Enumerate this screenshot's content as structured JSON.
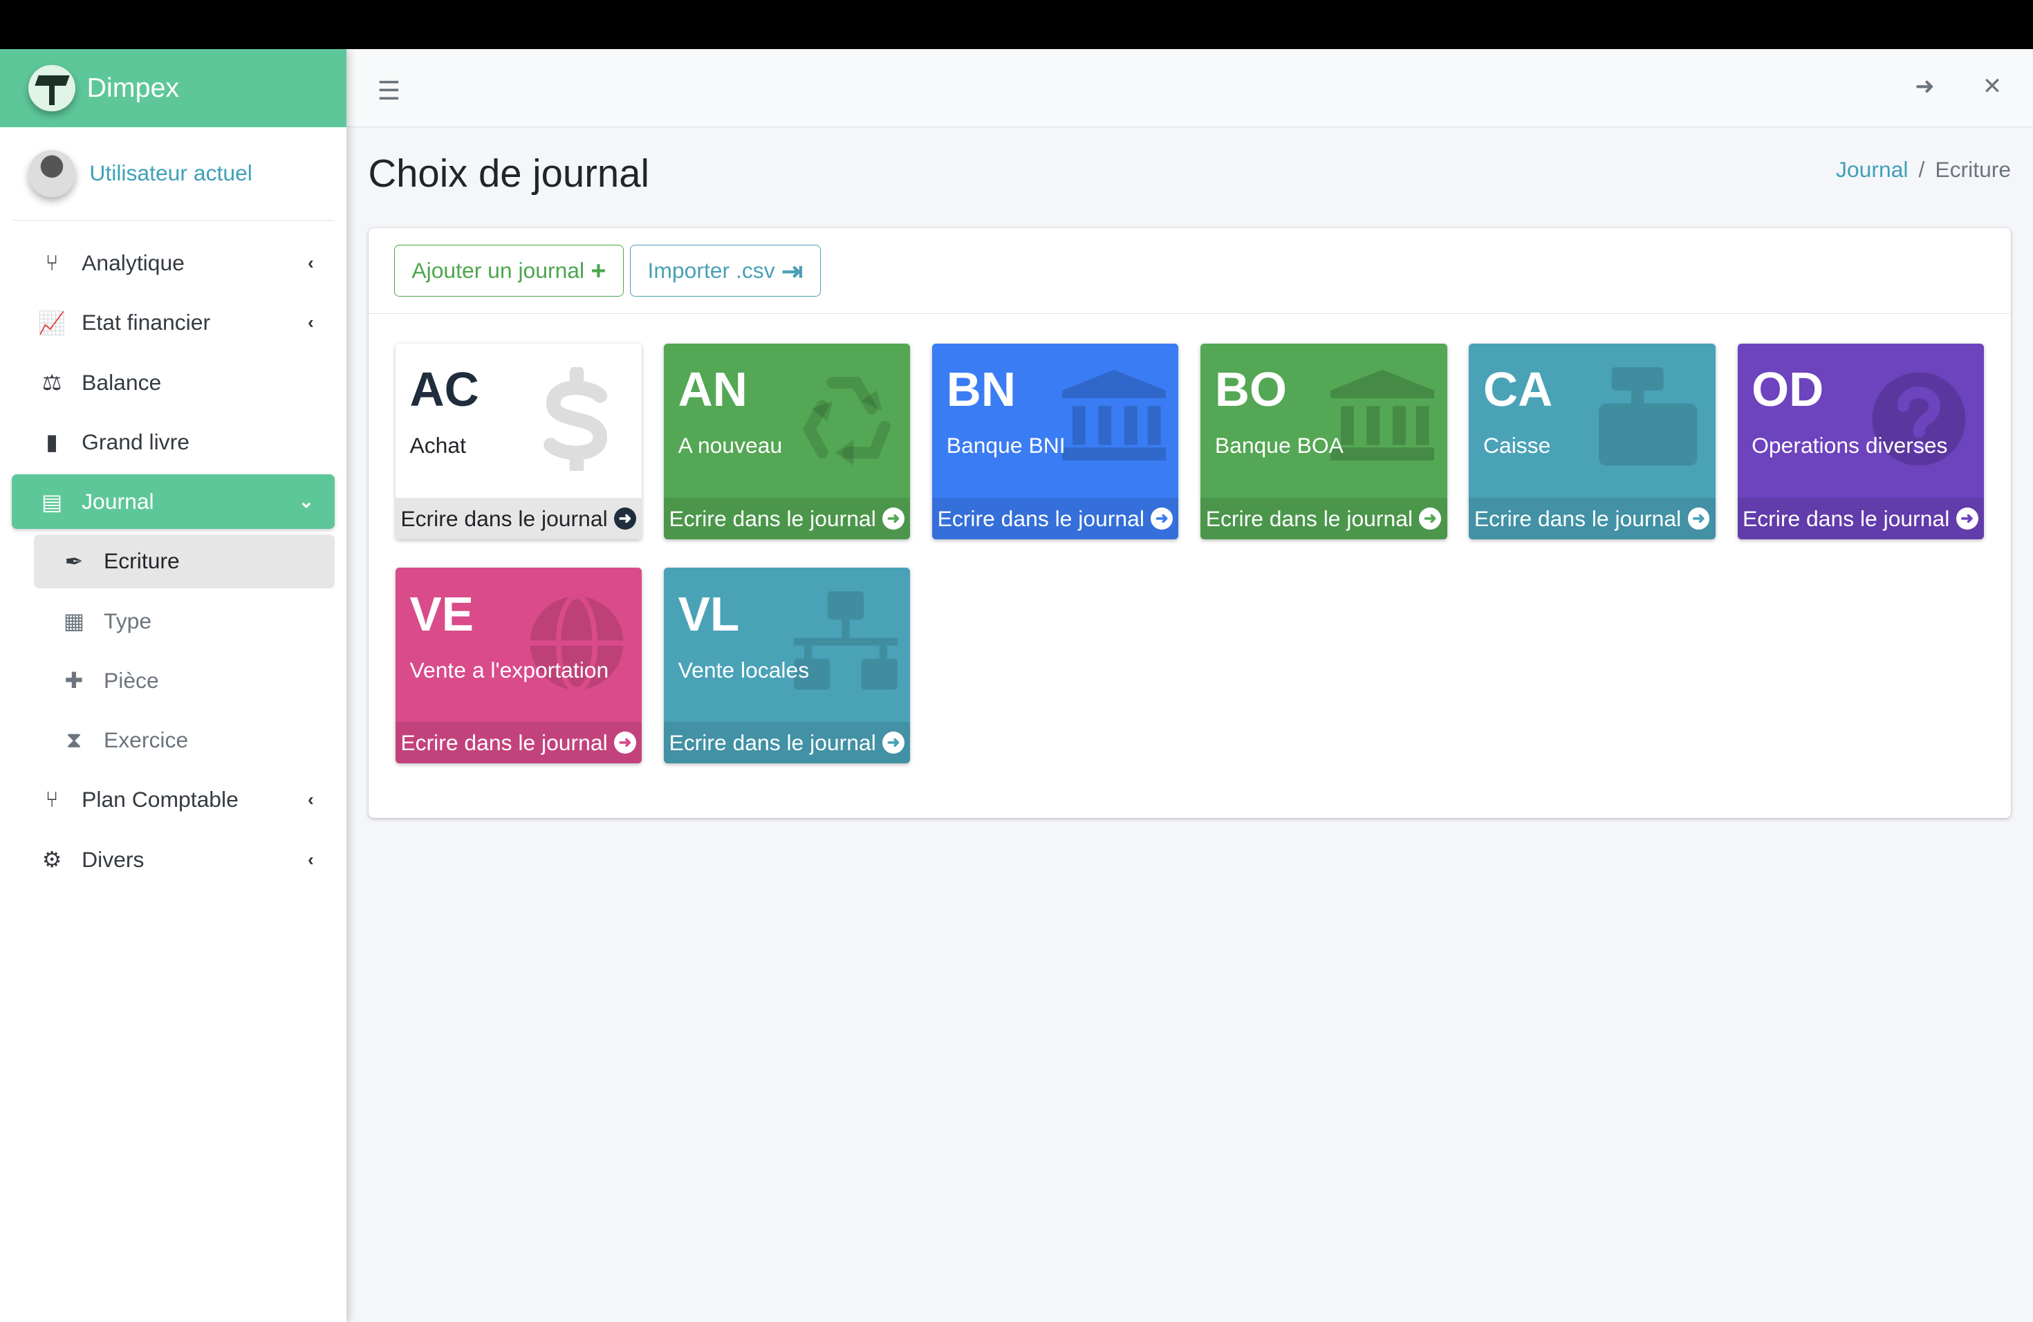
{
  "brand": {
    "name": "Dimpex"
  },
  "user": {
    "name": "Utilisateur actuel"
  },
  "sidebar": {
    "items": [
      {
        "label": "Analytique",
        "icon": "code-branch-icon",
        "chevron": true
      },
      {
        "label": "Etat financier",
        "icon": "chart-line-icon",
        "chevron": true
      },
      {
        "label": "Balance",
        "icon": "balance-scale-icon"
      },
      {
        "label": "Grand livre",
        "icon": "book-icon"
      },
      {
        "label": "Journal",
        "icon": "list-alt-icon",
        "active": true,
        "expanded": true
      },
      {
        "label": "Ecriture",
        "icon": "feather-icon",
        "sub": true,
        "selected": true
      },
      {
        "label": "Type",
        "icon": "th-icon",
        "sub": true
      },
      {
        "label": "Pièce",
        "icon": "puzzle-icon",
        "sub": true
      },
      {
        "label": "Exercice",
        "icon": "hourglass-icon",
        "sub": true
      },
      {
        "label": "Plan Comptable",
        "icon": "code-branch-icon",
        "chevron": true
      },
      {
        "label": "Divers",
        "icon": "cogs-icon",
        "chevron": true
      }
    ]
  },
  "page": {
    "title": "Choix de journal",
    "breadcrumb": [
      "Journal",
      "Ecriture"
    ]
  },
  "toolbar": {
    "add_label": "Ajouter un journal",
    "import_label": "Importer .csv"
  },
  "journals": [
    {
      "code": "AC",
      "name": "Achat",
      "action": "Ecrire dans le journal",
      "color": "#ffffff",
      "icon": "dollar-icon"
    },
    {
      "code": "AN",
      "name": "A nouveau",
      "action": "Ecrire dans le journal",
      "color": "#54a754",
      "icon": "recycle-icon"
    },
    {
      "code": "BN",
      "name": "Banque BNI",
      "action": "Ecrire dans le journal",
      "color": "#3a7cf3",
      "icon": "bank-icon"
    },
    {
      "code": "BO",
      "name": "Banque BOA",
      "action": "Ecrire dans le journal",
      "color": "#54a754",
      "icon": "bank-icon"
    },
    {
      "code": "CA",
      "name": "Caisse",
      "action": "Ecrire dans le journal",
      "color": "#4aa2b7",
      "icon": "cash-register-icon"
    },
    {
      "code": "OD",
      "name": "Operations diverses",
      "action": "Ecrire dans le journal",
      "color": "#6d43be",
      "icon": "question-circle-icon"
    },
    {
      "code": "VE",
      "name": "Vente a l'exportation",
      "action": "Ecrire dans le journal",
      "color": "#d94b89",
      "icon": "globe-icon"
    },
    {
      "code": "VL",
      "name": "Vente locales",
      "action": "Ecrire dans le journal",
      "color": "#4aa2b7",
      "icon": "sitemap-icon"
    }
  ]
}
